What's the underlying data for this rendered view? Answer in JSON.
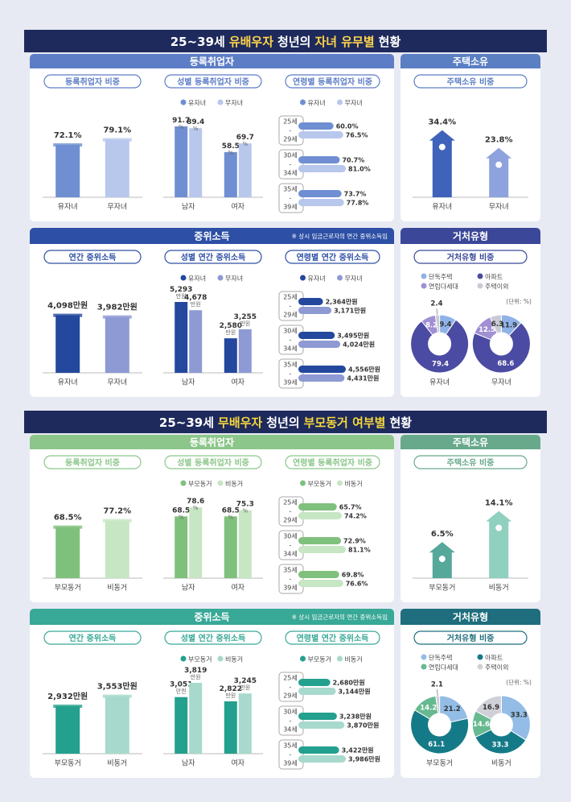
{
  "sections": [
    {
      "title_parts": [
        "25~39세",
        "유배우자",
        "청년의",
        "자녀 유무별",
        "현황"
      ],
      "panels": [
        {
          "title": "등록취업자"
        },
        {
          "title": "주택소유"
        },
        {
          "title": "중위소득",
          "note": "※ 상시 임금근로자의 연간 중위소득임"
        },
        {
          "title": "거처유형"
        }
      ]
    },
    {
      "title_parts": [
        "25~39세",
        "무배우자",
        "청년의",
        "부모동거 여부별",
        "현황"
      ],
      "panels": [
        {
          "title": "등록취업자"
        },
        {
          "title": "주택소유"
        },
        {
          "title": "중위소득",
          "note": "※ 상시 임금근로자의 연간 중위소득임"
        },
        {
          "title": "거처유형"
        }
      ]
    }
  ],
  "chart_data": [
    {
      "type": "bar",
      "title": "등록취업자 비중",
      "categories": [
        "유자녀",
        "무자녀"
      ],
      "values": [
        72.1,
        79.1
      ],
      "value_labels": [
        "72.1%",
        "79.1%"
      ],
      "colors": [
        "#6f8fd2",
        "#b8c7ec"
      ]
    },
    {
      "type": "grouped_bar",
      "title": "성별 등록취업자 비중",
      "categories": [
        "남자",
        "여자"
      ],
      "series": [
        {
          "name": "유자녀",
          "color": "#6f8fd2",
          "values": [
            91.7,
            58.5
          ],
          "value_labels": [
            "91.7%",
            "58.5%"
          ]
        },
        {
          "name": "무자녀",
          "color": "#b8c7ec",
          "values": [
            89.4,
            69.7
          ],
          "value_labels": [
            "89.4%",
            "69.7%"
          ]
        }
      ]
    },
    {
      "type": "hbar",
      "title": "연령별 등록취업자 비중",
      "categories": [
        [
          "25세",
          "-",
          "29세"
        ],
        [
          "30세",
          "-",
          "34세"
        ],
        [
          "35세",
          "-",
          "39세"
        ]
      ],
      "series": [
        {
          "name": "유자녀",
          "color": "#6f8fd2",
          "values": [
            60.0,
            70.7,
            73.7
          ],
          "value_labels": [
            "60.0%",
            "70.7%",
            "73.7%"
          ]
        },
        {
          "name": "무자녀",
          "color": "#b8c7ec",
          "values": [
            76.5,
            81.0,
            77.8
          ],
          "value_labels": [
            "76.5%",
            "81.0%",
            "77.8%"
          ]
        }
      ]
    },
    {
      "type": "bar",
      "title": "주택소유 비중",
      "categories": [
        "유자녀",
        "무자녀"
      ],
      "values": [
        34.4,
        23.8
      ],
      "value_labels": [
        "34.4%",
        "23.8%"
      ],
      "colors": [
        "#3f63bb",
        "#8ea2dd"
      ]
    },
    {
      "type": "bar",
      "title": "연간 중위소득",
      "categories": [
        "유자녀",
        "무자녀"
      ],
      "values": [
        4098,
        3982
      ],
      "value_labels": [
        "4,098만원",
        "3,982만원"
      ],
      "colors": [
        "#23489d",
        "#8e9ad4"
      ]
    },
    {
      "type": "grouped_bar",
      "title": "성별 연간 중위소득",
      "categories": [
        "남자",
        "여자"
      ],
      "series": [
        {
          "name": "유자녀",
          "color": "#23489d",
          "values": [
            5293,
            2580
          ],
          "value_labels": [
            "5,293만원",
            "2,580만원"
          ]
        },
        {
          "name": "무자녀",
          "color": "#8e9ad4",
          "values": [
            4678,
            3255
          ],
          "value_labels": [
            "4,678만원",
            "3,255만원"
          ]
        }
      ]
    },
    {
      "type": "hbar",
      "title": "연령별 연간 중위소득",
      "categories": [
        [
          "25세",
          "-",
          "29세"
        ],
        [
          "30세",
          "-",
          "34세"
        ],
        [
          "35세",
          "-",
          "39세"
        ]
      ],
      "series": [
        {
          "name": "유자녀",
          "color": "#23489d",
          "values": [
            2364,
            3495,
            4556
          ],
          "value_labels": [
            "2,364만원",
            "3,495만원",
            "4,556만원"
          ]
        },
        {
          "name": "무자녀",
          "color": "#8e9ad4",
          "values": [
            3171,
            4024,
            4431
          ],
          "value_labels": [
            "3,171만원",
            "4,024만원",
            "4,431만원"
          ]
        }
      ]
    },
    {
      "type": "donut",
      "title": "거처유형 비중",
      "unit": "(단위: %)",
      "labels": [
        "단독주택",
        "아파트",
        "연립다세대",
        "주택이외"
      ],
      "colors": [
        "#8fb2e8",
        "#4b4ba3",
        "#a08fd2",
        "#c9cad6"
      ],
      "series": [
        {
          "name": "유자녀",
          "values": [
            9.4,
            79.4,
            8.2,
            2.4
          ]
        },
        {
          "name": "무자녀",
          "values": [
            11.9,
            68.6,
            12.5,
            6.3
          ]
        }
      ]
    },
    {
      "type": "bar",
      "title": "등록취업자 비중",
      "categories": [
        "부모동거",
        "비동거"
      ],
      "values": [
        68.5,
        77.2
      ],
      "value_labels": [
        "68.5%",
        "77.2%"
      ],
      "colors": [
        "#80c07d",
        "#c7e6c3"
      ]
    },
    {
      "type": "grouped_bar",
      "title": "성별 등록취업자 비중",
      "categories": [
        "남자",
        "여자"
      ],
      "series": [
        {
          "name": "부모동거",
          "color": "#80c07d",
          "values": [
            68.5,
            68.5
          ],
          "value_labels": [
            "68.5%",
            "68.5%"
          ]
        },
        {
          "name": "비동거",
          "color": "#c7e6c3",
          "values": [
            78.6,
            75.3
          ],
          "value_labels": [
            "78.6%",
            "75.3%"
          ]
        }
      ]
    },
    {
      "type": "hbar",
      "title": "연령별 등록취업자 비중",
      "categories": [
        [
          "25세",
          "-",
          "29세"
        ],
        [
          "30세",
          "-",
          "34세"
        ],
        [
          "35세",
          "-",
          "39세"
        ]
      ],
      "series": [
        {
          "name": "부모동거",
          "color": "#80c07d",
          "values": [
            65.7,
            72.9,
            69.8
          ],
          "value_labels": [
            "65.7%",
            "72.9%",
            "69.8%"
          ]
        },
        {
          "name": "비동거",
          "color": "#c7e6c3",
          "values": [
            74.2,
            81.1,
            76.6
          ],
          "value_labels": [
            "74.2%",
            "81.1%",
            "76.6%"
          ]
        }
      ]
    },
    {
      "type": "bar",
      "title": "주택소유 비중",
      "categories": [
        "부모동거",
        "비동거"
      ],
      "values": [
        6.5,
        14.1
      ],
      "value_labels": [
        "6.5%",
        "14.1%"
      ],
      "colors": [
        "#56a89b",
        "#8fd0bf"
      ]
    },
    {
      "type": "bar",
      "title": "연간 중위소득",
      "categories": [
        "부모동거",
        "비동거"
      ],
      "values": [
        2932,
        3553
      ],
      "value_labels": [
        "2,932만원",
        "3,553만원"
      ],
      "colors": [
        "#24a08e",
        "#a7d9cc"
      ]
    },
    {
      "type": "grouped_bar",
      "title": "성별 연간 중위소득",
      "categories": [
        "남자",
        "여자"
      ],
      "series": [
        {
          "name": "부모동거",
          "color": "#24a08e",
          "values": [
            3051,
            2822
          ],
          "value_labels": [
            "3,051만원",
            "2,822만원"
          ]
        },
        {
          "name": "비동거",
          "color": "#a7d9cc",
          "values": [
            3819,
            3245
          ],
          "value_labels": [
            "3,819만원",
            "3,245만원"
          ]
        }
      ]
    },
    {
      "type": "hbar",
      "title": "연령별 연간 중위소득",
      "categories": [
        [
          "25세",
          "-",
          "29세"
        ],
        [
          "30세",
          "-",
          "34세"
        ],
        [
          "35세",
          "-",
          "39세"
        ]
      ],
      "series": [
        {
          "name": "부모동거",
          "color": "#24a08e",
          "values": [
            2680,
            3238,
            3422
          ],
          "value_labels": [
            "2,680만원",
            "3,238만원",
            "3,422만원"
          ]
        },
        {
          "name": "비동거",
          "color": "#a7d9cc",
          "values": [
            3144,
            3870,
            3986
          ],
          "value_labels": [
            "3,144만원",
            "3,870만원",
            "3,986만원"
          ]
        }
      ]
    },
    {
      "type": "donut",
      "title": "거처유형 비중",
      "unit": "(단위: %)",
      "labels": [
        "단독주택",
        "아파트",
        "연립다세대",
        "주택이외"
      ],
      "colors": [
        "#93bde6",
        "#157a88",
        "#66b990",
        "#cfd0d8"
      ],
      "series": [
        {
          "name": "부모동거",
          "values": [
            21.2,
            61.1,
            14.2,
            2.1
          ]
        },
        {
          "name": "비동거",
          "values": [
            33.3,
            33.3,
            14.6,
            16.9
          ]
        }
      ]
    }
  ]
}
